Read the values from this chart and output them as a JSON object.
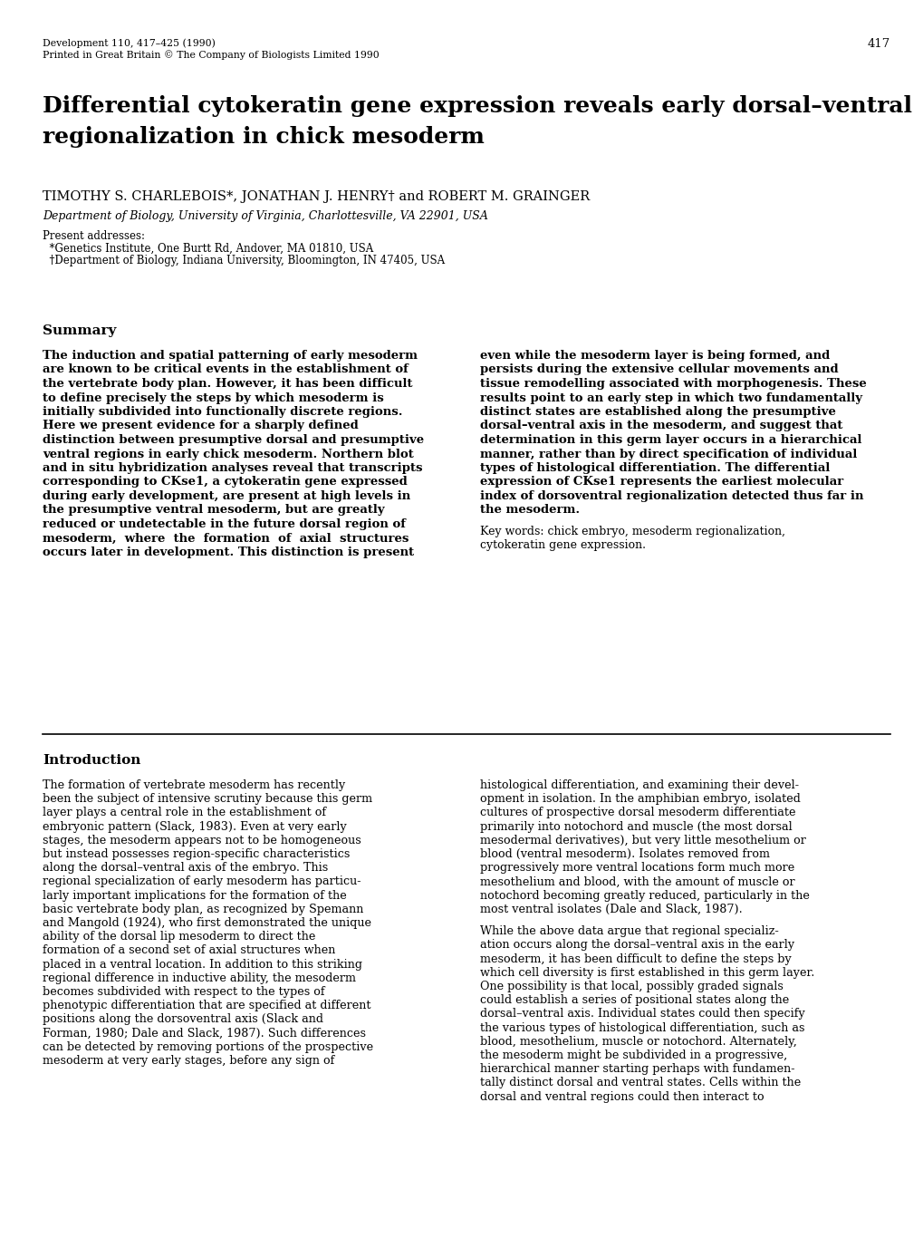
{
  "background_color": "#ffffff",
  "header_line1": "Development 110, 417–425 (1990)",
  "header_line2": "Printed in Great Britain © The Company of Biologists Limited 1990",
  "page_number": "417",
  "title_line1": "Differential cytokeratin gene expression reveals early dorsal–ventral",
  "title_line2": "regionalization in chick mesoderm",
  "authors": "TIMOTHY S. CHARLEBOIS*, JONATHAN J. HENRY† and ROBERT M. GRAINGER",
  "affiliation": "Department of Biology, University of Virginia, Charlottesville, VA 22901, USA",
  "present_addresses_label": "Present addresses:",
  "address1": "  *Genetics Institute, One Burtt Rd, Andover, MA 01810, USA",
  "address2": "  †Department of Biology, Indiana University, Bloomington, IN 47405, USA",
  "summary_heading": "Summary",
  "summary_left_lines": [
    "The induction and spatial patterning of early mesoderm",
    "are known to be critical events in the establishment of",
    "the vertebrate body plan. However, it has been difficult",
    "to define precisely the steps by which mesoderm is",
    "initially subdivided into functionally discrete regions.",
    "Here we present evidence for a sharply defined",
    "distinction between presumptive dorsal and presumptive",
    "ventral regions in early chick mesoderm. Northern blot",
    "and in situ hybridization analyses reveal that transcripts",
    "corresponding to CKse1, a cytokeratin gene expressed",
    "during early development, are present at high levels in",
    "the presumptive ventral mesoderm, but are greatly",
    "reduced or undetectable in the future dorsal region of",
    "mesoderm,  where  the  formation  of  axial  structures",
    "occurs later in development. This distinction is present"
  ],
  "summary_right_lines": [
    "even while the mesoderm layer is being formed, and",
    "persists during the extensive cellular movements and",
    "tissue remodelling associated with morphogenesis. These",
    "results point to an early step in which two fundamentally",
    "distinct states are established along the presumptive",
    "dorsal–ventral axis in the mesoderm, and suggest that",
    "determination in this germ layer occurs in a hierarchical",
    "manner, rather than by direct specification of individual",
    "types of histological differentiation. The differential",
    "expression of CKse1 represents the earliest molecular",
    "index of dorsoventral regionalization detected thus far in",
    "the mesoderm."
  ],
  "key_words_lines": [
    "Key words: chick embryo, mesoderm regionalization,",
    "cytokeratin gene expression."
  ],
  "intro_heading": "Introduction",
  "intro_left_lines": [
    "The formation of vertebrate mesoderm has recently",
    "been the subject of intensive scrutiny because this germ",
    "layer plays a central role in the establishment of",
    "embryonic pattern (Slack, 1983). Even at very early",
    "stages, the mesoderm appears not to be homogeneous",
    "but instead possesses region-specific characteristics",
    "along the dorsal–ventral axis of the embryo. This",
    "regional specialization of early mesoderm has particu-",
    "larly important implications for the formation of the",
    "basic vertebrate body plan, as recognized by Spemann",
    "and Mangold (1924), who first demonstrated the unique",
    "ability of the dorsal lip mesoderm to direct the",
    "formation of a second set of axial structures when",
    "placed in a ventral location. In addition to this striking",
    "regional difference in inductive ability, the mesoderm",
    "becomes subdivided with respect to the types of",
    "phenotypic differentiation that are specified at different",
    "positions along the dorsoventral axis (Slack and",
    "Forman, 1980; Dale and Slack, 1987). Such differences",
    "can be detected by removing portions of the prospective",
    "mesoderm at very early stages, before any sign of"
  ],
  "intro_right_lines": [
    "histological differentiation, and examining their devel-",
    "opment in isolation. In the amphibian embryo, isolated",
    "cultures of prospective dorsal mesoderm differentiate",
    "primarily into notochord and muscle (the most dorsal",
    "mesodermal derivatives), but very little mesothelium or",
    "blood (ventral mesoderm). Isolates removed from",
    "progressively more ventral locations form much more",
    "mesothelium and blood, with the amount of muscle or",
    "notochord becoming greatly reduced, particularly in the",
    "most ventral isolates (Dale and Slack, 1987).",
    "",
    "While the above data argue that regional specializ-",
    "ation occurs along the dorsal–ventral axis in the early",
    "mesoderm, it has been difficult to define the steps by",
    "which cell diversity is first established in this germ layer.",
    "One possibility is that local, possibly graded signals",
    "could establish a series of positional states along the",
    "dorsal–ventral axis. Individual states could then specify",
    "the various types of histological differentiation, such as",
    "blood, mesothelium, muscle or notochord. Alternately,",
    "the mesoderm might be subdivided in a progressive,",
    "hierarchical manner starting perhaps with fundamen-",
    "tally distinct dorsal and ventral states. Cells within the",
    "dorsal and ventral regions could then interact to"
  ]
}
